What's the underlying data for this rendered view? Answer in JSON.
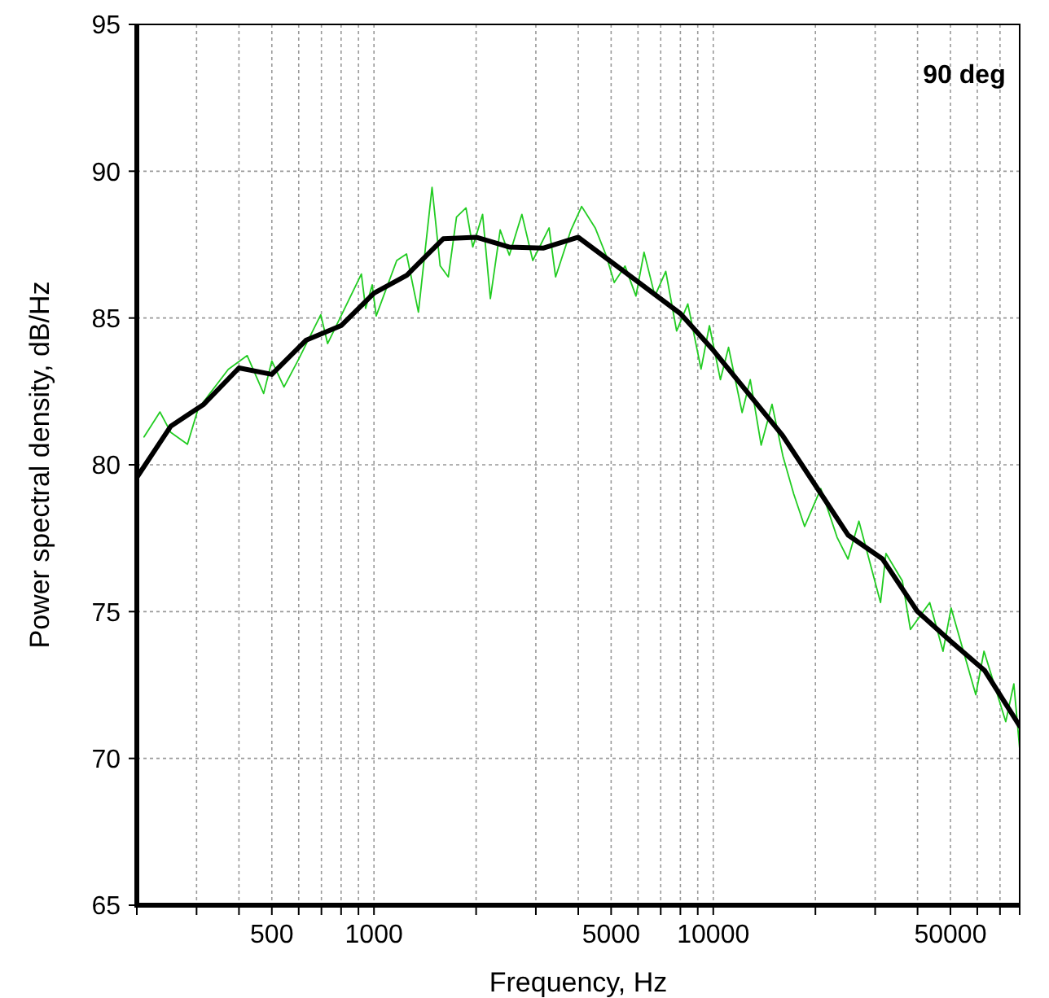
{
  "chart_data": {
    "type": "line",
    "xlabel": "Frequency, Hz",
    "ylabel": "Power spectral density, dB/Hz",
    "annotations": [
      "90 deg"
    ],
    "log": "x",
    "grid": true,
    "xlim": [
      200,
      80000
    ],
    "ylim": [
      65,
      95
    ],
    "yticks": [
      65,
      70,
      75,
      80,
      85,
      90,
      95
    ],
    "xticks": [
      {
        "value": 200,
        "label": null
      },
      {
        "value": 300,
        "label": null
      },
      {
        "value": 400,
        "label": null
      },
      500,
      {
        "value": 600,
        "label": null
      },
      {
        "value": 700,
        "label": null
      },
      {
        "value": 800,
        "label": null
      },
      {
        "value": 900,
        "label": null
      },
      1000,
      {
        "value": 2000,
        "label": null
      },
      {
        "value": 3000,
        "label": null
      },
      {
        "value": 4000,
        "label": null
      },
      5000,
      {
        "value": 6000,
        "label": null
      },
      {
        "value": 7000,
        "label": null
      },
      {
        "value": 8000,
        "label": null
      },
      {
        "value": 9000,
        "label": null
      },
      10000,
      {
        "value": 20000,
        "label": null
      },
      {
        "value": 30000,
        "label": null
      },
      {
        "value": 40000,
        "label": null
      },
      50000,
      {
        "value": 60000,
        "label": null
      },
      {
        "value": 70000,
        "label": null
      },
      {
        "value": 80000,
        "label": null
      }
    ],
    "series": [
      {
        "color": "#22cc22",
        "x": [
          210,
          234,
          252,
          282,
          303,
          372,
          423,
          473,
          500,
          543,
          600,
          697,
          730,
          918,
          945,
          988,
          1015,
          1167,
          1247,
          1352,
          1483,
          1567,
          1656,
          1751,
          1867,
          1955,
          2090,
          2203,
          2355,
          2506,
          2729,
          2938,
          3282,
          3430,
          3802,
          4093,
          4487,
          4831,
          5106,
          5496,
          5917,
          6252,
          6730,
          7244,
          7798,
          8414,
          9204,
          9742,
          10494,
          11092,
          12162,
          12853,
          13841,
          14900,
          16040,
          17268,
          18589,
          20750,
          23170,
          24950,
          26870,
          31120,
          32290,
          36070,
          38110,
          43450,
          47550,
          50240,
          59400,
          62800,
          72780,
          76900,
          80000
        ],
        "values": [
          80.95,
          81.8,
          81.1,
          80.7,
          81.9,
          83.25,
          83.72,
          82.43,
          83.54,
          82.65,
          83.6,
          85.11,
          84.13,
          86.5,
          85.33,
          86.13,
          85.07,
          86.96,
          87.18,
          85.2,
          89.45,
          86.78,
          86.4,
          88.44,
          88.75,
          87.42,
          88.53,
          85.66,
          88.0,
          87.14,
          88.53,
          86.96,
          88.07,
          86.4,
          87.98,
          88.8,
          88.07,
          87.14,
          86.21,
          86.77,
          85.75,
          87.24,
          85.75,
          86.59,
          84.56,
          85.48,
          83.26,
          84.74,
          82.9,
          84.0,
          81.78,
          82.9,
          80.67,
          82.06,
          80.3,
          79.0,
          77.9,
          79.19,
          77.53,
          76.79,
          78.08,
          75.31,
          76.98,
          76.05,
          74.39,
          75.31,
          73.65,
          75.12,
          72.17,
          73.65,
          71.25,
          72.54,
          70.32
        ]
      },
      {
        "color": "#000000",
        "x": [
          200,
          252,
          315,
          400,
          500,
          630,
          800,
          1000,
          1250,
          1600,
          2000,
          2500,
          3150,
          4000,
          8000,
          10000,
          16000,
          20000,
          25000,
          31500,
          40000,
          50000,
          63000,
          80000
        ],
        "values": [
          79.57,
          81.32,
          82.06,
          83.3,
          83.08,
          84.24,
          84.74,
          85.85,
          86.46,
          87.7,
          87.75,
          87.42,
          87.38,
          87.75,
          85.15,
          83.9,
          81.0,
          79.3,
          77.6,
          76.8,
          75.0,
          74.0,
          73.0,
          71.1
        ]
      }
    ]
  }
}
